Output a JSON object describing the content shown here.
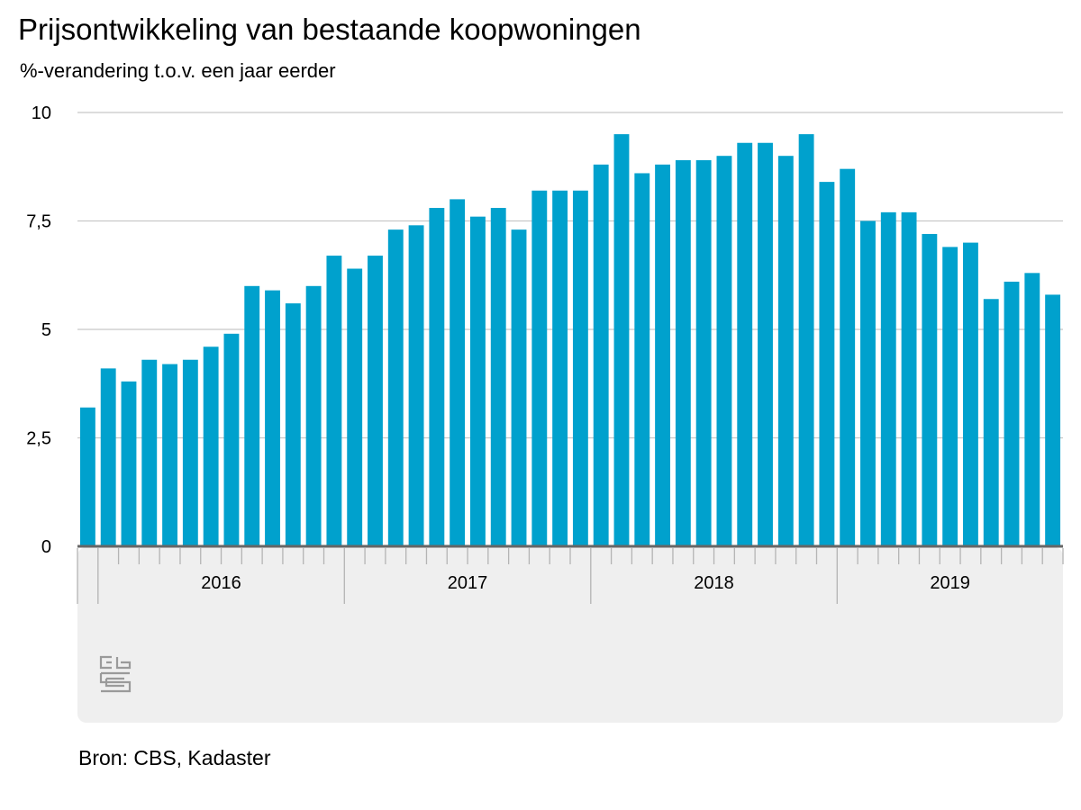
{
  "title": "Prijsontwikkeling van bestaande koopwoningen",
  "subtitle": "%-verandering t.o.v. een jaar eerder",
  "source": "Bron: CBS, Kadaster",
  "logo": "cbs",
  "colors": {
    "bar": "#00a1cd",
    "grid": "#c8c8c8",
    "axis": "#666666",
    "panel": "#efefef"
  },
  "chart_data": {
    "type": "bar",
    "title": "Prijsontwikkeling van bestaande koopwoningen",
    "ylabel": "%-verandering t.o.v. een jaar eerder",
    "xlabel": "",
    "ylim": [
      0,
      10
    ],
    "yticks": [
      0,
      2.5,
      5,
      7.5,
      10
    ],
    "ytick_labels": [
      "0",
      "2,5",
      "5",
      "7,5",
      "10"
    ],
    "grid": true,
    "categories": [
      "2015-12",
      "2016-01",
      "2016-02",
      "2016-03",
      "2016-04",
      "2016-05",
      "2016-06",
      "2016-07",
      "2016-08",
      "2016-09",
      "2016-10",
      "2016-11",
      "2016-12",
      "2017-01",
      "2017-02",
      "2017-03",
      "2017-04",
      "2017-05",
      "2017-06",
      "2017-07",
      "2017-08",
      "2017-09",
      "2017-10",
      "2017-11",
      "2017-12",
      "2018-01",
      "2018-02",
      "2018-03",
      "2018-04",
      "2018-05",
      "2018-06",
      "2018-07",
      "2018-08",
      "2018-09",
      "2018-10",
      "2018-11",
      "2018-12",
      "2019-01",
      "2019-02",
      "2019-03",
      "2019-04",
      "2019-05",
      "2019-06",
      "2019-07",
      "2019-08",
      "2019-09",
      "2019-10",
      "2019-11"
    ],
    "values": [
      3.2,
      4.1,
      3.8,
      4.3,
      4.2,
      4.3,
      4.6,
      4.9,
      6.0,
      5.9,
      5.6,
      6.0,
      6.7,
      6.4,
      6.7,
      7.3,
      7.4,
      7.8,
      8.0,
      7.6,
      7.8,
      7.3,
      8.2,
      8.2,
      8.2,
      8.8,
      9.5,
      8.6,
      8.8,
      8.9,
      8.9,
      9.0,
      9.3,
      9.3,
      9.0,
      9.5,
      8.4,
      8.7,
      7.5,
      7.7,
      7.7,
      7.2,
      6.9,
      7.0,
      5.7,
      6.1,
      6.3,
      5.8
    ],
    "years": [
      {
        "label": "2016",
        "start": 1,
        "end": 12
      },
      {
        "label": "2017",
        "start": 13,
        "end": 24
      },
      {
        "label": "2018",
        "start": 25,
        "end": 36
      },
      {
        "label": "2019",
        "start": 37,
        "end": 47
      }
    ]
  }
}
